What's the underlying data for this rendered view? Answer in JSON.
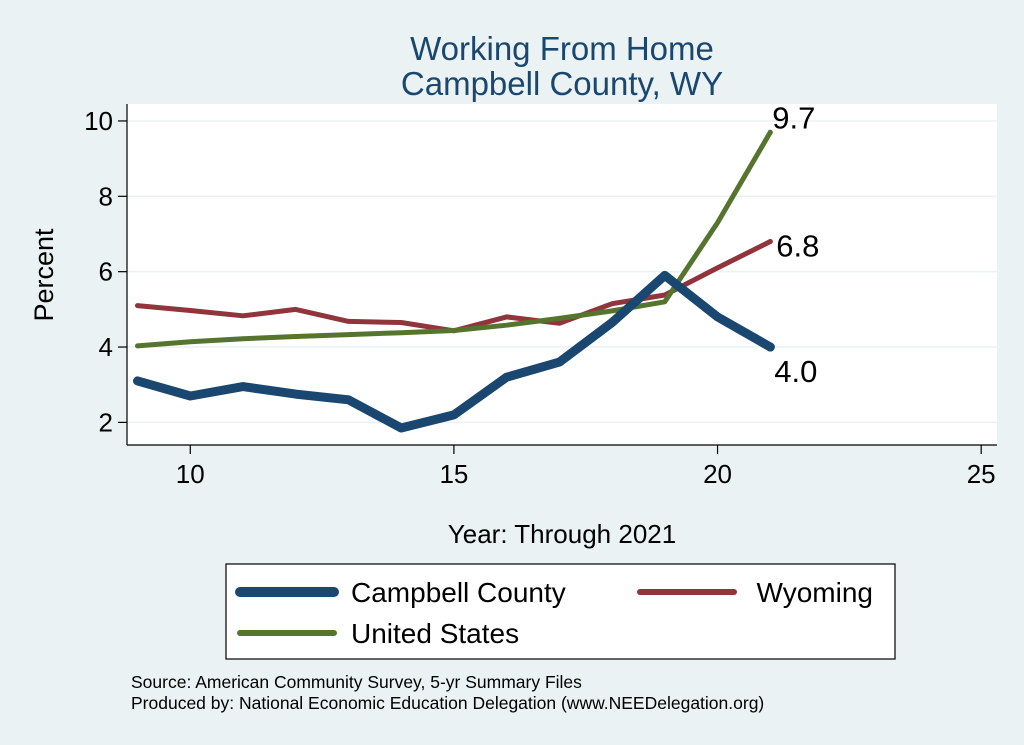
{
  "chart_data": {
    "type": "line",
    "title": "Working From Home",
    "subtitle": "Campbell County, WY",
    "xlabel": "Year: Through 2021",
    "ylabel": "Percent",
    "xlim": [
      8.8,
      25.3
    ],
    "ylim": [
      1.4,
      10.45
    ],
    "x_ticks": [
      10,
      15,
      20,
      25
    ],
    "y_ticks": [
      2,
      4,
      6,
      8,
      10
    ],
    "grid": true,
    "legend_position": "bottom",
    "x": [
      9,
      10,
      11,
      12,
      13,
      14,
      15,
      16,
      17,
      18,
      19,
      20,
      21
    ],
    "series": [
      {
        "name": "Campbell County",
        "color": "#1a476f",
        "width": 9,
        "values": [
          3.1,
          2.7,
          2.95,
          2.75,
          2.6,
          1.85,
          2.2,
          3.2,
          3.6,
          4.65,
          5.9,
          4.8,
          4.0
        ],
        "end_label": "4.0"
      },
      {
        "name": "Wyoming",
        "color": "#90353b",
        "width": 5,
        "values": [
          5.1,
          4.97,
          4.83,
          5.0,
          4.68,
          4.65,
          4.43,
          4.8,
          4.63,
          5.15,
          5.38,
          6.1,
          6.8
        ],
        "end_label": "6.8"
      },
      {
        "name": "United States",
        "color": "#55752f",
        "width": 5,
        "values": [
          4.03,
          4.14,
          4.22,
          4.28,
          4.33,
          4.38,
          4.44,
          4.58,
          4.76,
          4.96,
          5.2,
          7.3,
          9.7
        ],
        "end_label": "9.7"
      }
    ],
    "source_note": "Source: American Community Survey, 5-yr Summary Files",
    "produced_note": "Produced by: National Economic Education Delegation (www.NEEDelegation.org)"
  }
}
